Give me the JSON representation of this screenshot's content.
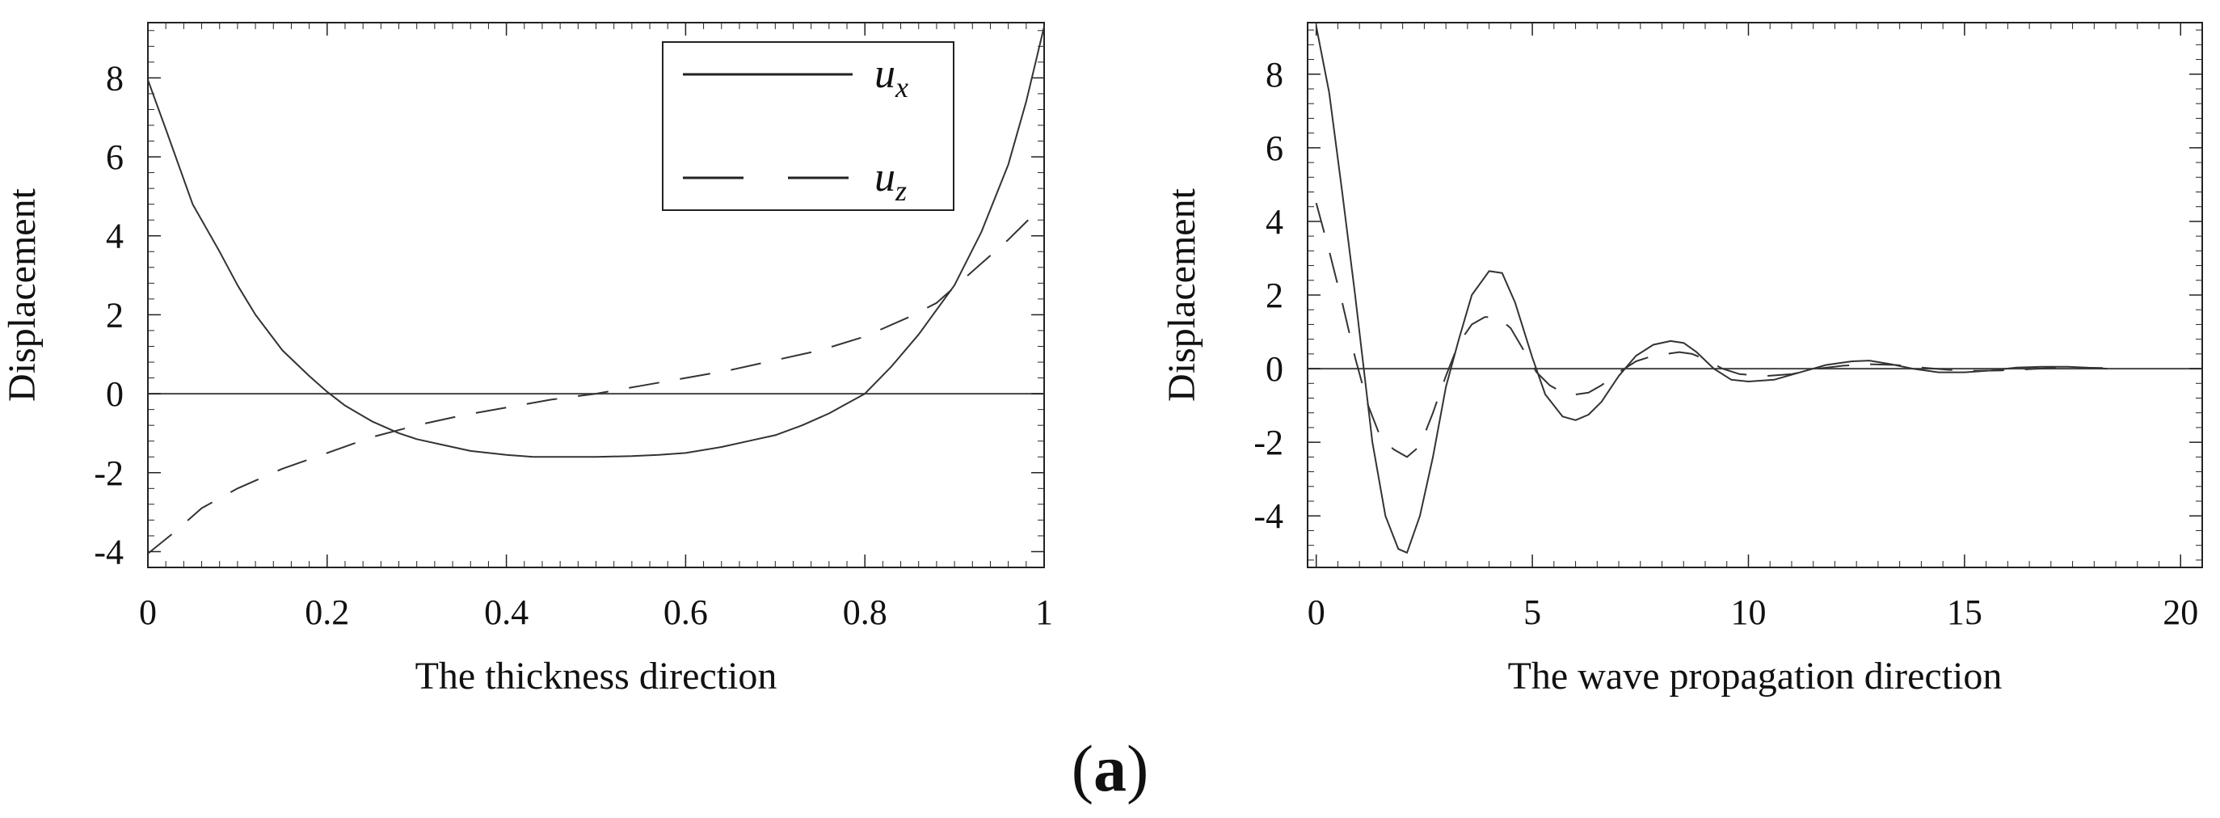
{
  "figure_label": "a",
  "chart_data": [
    {
      "type": "line",
      "xlabel": "The thickness direction",
      "ylabel": "Displacement",
      "xlim": [
        0,
        1
      ],
      "ylim": [
        -4.4,
        9.4
      ],
      "xticks": [
        0,
        0.2,
        0.4,
        0.6,
        0.8,
        1
      ],
      "xtick_labels": [
        "0",
        "0.2",
        "0.4",
        "0.6",
        "0.8",
        "1"
      ],
      "yticks": [
        -4,
        -2,
        0,
        2,
        4,
        6,
        8
      ],
      "ytick_labels": [
        "-4",
        "-2",
        "0",
        "2",
        "4",
        "6",
        "8"
      ],
      "zero_line": true,
      "legend": {
        "placement": "top-right",
        "entries": [
          {
            "base": "u",
            "sub": "x",
            "style": "solid"
          },
          {
            "base": "u",
            "sub": "z",
            "style": "dashed"
          }
        ]
      },
      "series": [
        {
          "name": "u_x",
          "style": "solid",
          "x": [
            0,
            0.02,
            0.05,
            0.08,
            0.1,
            0.12,
            0.15,
            0.18,
            0.2,
            0.22,
            0.25,
            0.28,
            0.3,
            0.33,
            0.36,
            0.4,
            0.43,
            0.46,
            0.5,
            0.54,
            0.57,
            0.6,
            0.64,
            0.67,
            0.7,
            0.73,
            0.76,
            0.78,
            0.8,
            0.83,
            0.86,
            0.9,
            0.93,
            0.96,
            0.98,
            1.0
          ],
          "y": [
            7.95,
            6.7,
            4.8,
            3.6,
            2.75,
            2.0,
            1.1,
            0.45,
            0.05,
            -0.3,
            -0.7,
            -1.0,
            -1.15,
            -1.3,
            -1.45,
            -1.55,
            -1.6,
            -1.6,
            -1.6,
            -1.58,
            -1.55,
            -1.5,
            -1.35,
            -1.2,
            -1.05,
            -0.8,
            -0.5,
            -0.25,
            0.0,
            0.7,
            1.5,
            2.75,
            4.1,
            5.8,
            7.4,
            9.3
          ]
        },
        {
          "name": "u_z",
          "style": "dashed",
          "x": [
            0,
            0.03,
            0.06,
            0.1,
            0.15,
            0.2,
            0.25,
            0.3,
            0.35,
            0.4,
            0.45,
            0.5,
            0.55,
            0.6,
            0.65,
            0.7,
            0.75,
            0.8,
            0.85,
            0.88,
            0.9,
            0.93,
            0.96,
            1.0
          ],
          "y": [
            -4.05,
            -3.5,
            -2.9,
            -2.4,
            -1.9,
            -1.5,
            -1.1,
            -0.8,
            -0.55,
            -0.35,
            -0.15,
            0.0,
            0.2,
            0.4,
            0.6,
            0.85,
            1.1,
            1.45,
            1.95,
            2.3,
            2.7,
            3.3,
            3.9,
            4.8
          ]
        }
      ]
    },
    {
      "type": "line",
      "xlabel": "The wave propagation direction",
      "ylabel": "Displacement",
      "xlim": [
        -0.2,
        20.5
      ],
      "ylim": [
        -5.4,
        9.4
      ],
      "xticks": [
        0,
        5,
        10,
        15,
        20
      ],
      "xtick_labels": [
        "0",
        "5",
        "10",
        "15",
        "20"
      ],
      "yticks": [
        -4,
        -2,
        0,
        2,
        4,
        6,
        8
      ],
      "ytick_labels": [
        "-4",
        "-2",
        "0",
        "2",
        "4",
        "6",
        "8"
      ],
      "zero_line": true,
      "series": [
        {
          "name": "u_x",
          "style": "solid",
          "x": [
            0,
            0.3,
            0.6,
            0.9,
            1.1,
            1.3,
            1.6,
            1.9,
            2.1,
            2.4,
            2.7,
            3.0,
            3.3,
            3.6,
            4.0,
            4.3,
            4.6,
            5.0,
            5.3,
            5.7,
            6.0,
            6.3,
            6.6,
            7.0,
            7.4,
            7.8,
            8.2,
            8.5,
            8.8,
            9.2,
            9.6,
            10.0,
            10.6,
            11.2,
            11.8,
            12.4,
            12.8,
            13.3,
            13.8,
            14.4,
            15.0,
            15.6,
            16.2,
            16.8,
            17.4,
            18.0,
            18.3
          ],
          "y": [
            9.3,
            7.5,
            4.8,
            2.0,
            0.0,
            -2.0,
            -4.0,
            -4.9,
            -5.0,
            -4.0,
            -2.4,
            -0.5,
            0.8,
            2.0,
            2.65,
            2.6,
            1.8,
            0.3,
            -0.7,
            -1.3,
            -1.4,
            -1.25,
            -0.9,
            -0.2,
            0.35,
            0.65,
            0.75,
            0.7,
            0.45,
            0.0,
            -0.3,
            -0.35,
            -0.3,
            -0.1,
            0.1,
            0.2,
            0.22,
            0.12,
            0.0,
            -0.1,
            -0.1,
            -0.05,
            0.03,
            0.05,
            0.05,
            0.02,
            0.0
          ]
        },
        {
          "name": "u_z",
          "style": "dashed",
          "x": [
            0,
            0.3,
            0.6,
            0.9,
            1.2,
            1.5,
            1.8,
            2.1,
            2.4,
            2.7,
            3.0,
            3.3,
            3.6,
            3.9,
            4.2,
            4.5,
            4.8,
            5.1,
            5.4,
            5.7,
            6.0,
            6.3,
            6.6,
            7.0,
            7.4,
            7.8,
            8.1,
            8.4,
            8.7,
            9.0,
            9.4,
            9.8,
            10.4,
            11.0,
            11.6,
            12.2,
            12.8,
            13.4,
            14.0,
            14.6,
            15.2,
            15.8,
            16.4,
            17.0,
            17.6,
            18.2
          ],
          "y": [
            4.5,
            3.2,
            1.8,
            0.3,
            -1.0,
            -1.9,
            -2.2,
            -2.4,
            -2.1,
            -1.2,
            -0.2,
            0.7,
            1.2,
            1.4,
            1.4,
            1.1,
            0.5,
            -0.1,
            -0.45,
            -0.65,
            -0.7,
            -0.65,
            -0.45,
            -0.1,
            0.2,
            0.35,
            0.4,
            0.45,
            0.4,
            0.25,
            0.0,
            -0.15,
            -0.2,
            -0.15,
            0.0,
            0.08,
            0.12,
            0.1,
            0.03,
            -0.03,
            -0.06,
            -0.05,
            -0.02,
            0.02,
            0.03,
            0.02
          ]
        }
      ]
    }
  ]
}
